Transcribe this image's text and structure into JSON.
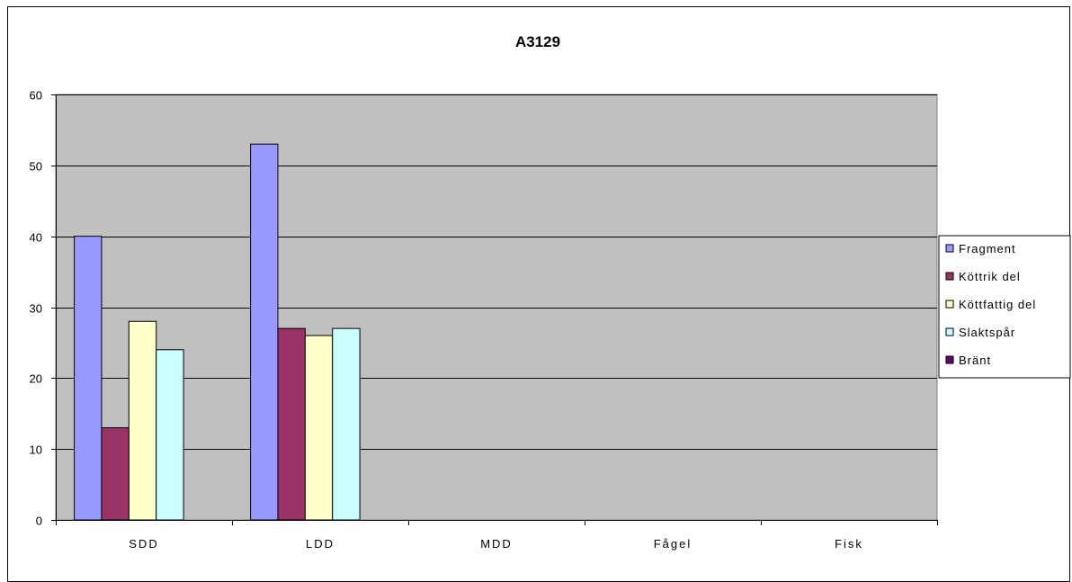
{
  "chart_data": {
    "type": "bar",
    "title": "A3129",
    "categories": [
      "SDD",
      "LDD",
      "MDD",
      "Fågel",
      "Fisk"
    ],
    "ylim": [
      0,
      60
    ],
    "yticks": [
      0,
      10,
      20,
      30,
      40,
      50,
      60
    ],
    "grid": true,
    "legend_position": "right",
    "plot_background": "#C0C0C0",
    "series": [
      {
        "name": "Fragment",
        "color": "#9999FF",
        "values": [
          40,
          53,
          0,
          0,
          0
        ]
      },
      {
        "name": "Köttrik del",
        "color": "#993366",
        "values": [
          13,
          27,
          0,
          0,
          0
        ]
      },
      {
        "name": "Köttfattig del",
        "color": "#FFFFCC",
        "values": [
          28,
          26,
          0,
          0,
          0
        ]
      },
      {
        "name": "Slaktspår",
        "color": "#CCFFFF",
        "values": [
          24,
          27,
          0,
          0,
          0
        ]
      },
      {
        "name": "Bränt",
        "color": "#660066",
        "values": [
          0,
          0,
          0,
          0,
          0
        ]
      }
    ]
  }
}
